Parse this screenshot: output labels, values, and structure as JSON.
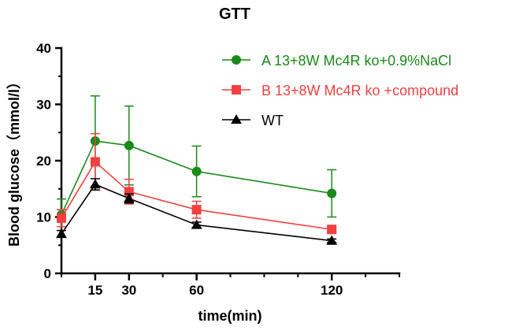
{
  "chart_data": {
    "type": "line",
    "title": "GTT",
    "xlabel": "time(min)",
    "ylabel": "Blood glucose（mmol/l）",
    "xlim": [
      0,
      150
    ],
    "ylim": [
      0,
      40
    ],
    "x_ticks": [
      15,
      30,
      60,
      120
    ],
    "x_minor_ticks": [
      0,
      15,
      30,
      45,
      60,
      75,
      90,
      105,
      120,
      135,
      150
    ],
    "y_ticks": [
      0,
      10,
      20,
      30,
      40
    ],
    "y_minor_ticks": [
      0,
      5,
      10,
      15,
      20,
      25,
      30,
      35,
      40
    ],
    "grid": false,
    "legend_position": "top-right",
    "x": [
      0,
      15,
      30,
      60,
      120
    ],
    "series": [
      {
        "name": "A 13+8W Mc4R ko+0.9%NaCl",
        "color": "#1a8a1a",
        "marker": "circle",
        "values": [
          10.4,
          23.5,
          22.7,
          18.1,
          14.2
        ],
        "error": [
          2.8,
          8.0,
          7.0,
          4.5,
          4.2
        ]
      },
      {
        "name": "B 13+8W Mc4R ko +compound",
        "color": "#f04040",
        "marker": "square",
        "values": [
          9.8,
          19.8,
          14.5,
          11.3,
          7.8
        ],
        "error": [
          1.5,
          5.0,
          2.2,
          1.5,
          0.4
        ]
      },
      {
        "name": "WT",
        "color": "#000000",
        "marker": "triangle",
        "values": [
          7.0,
          15.8,
          13.3,
          8.6,
          5.8
        ],
        "error": [
          0.6,
          1.0,
          0.8,
          0.5,
          0.3
        ]
      }
    ]
  }
}
